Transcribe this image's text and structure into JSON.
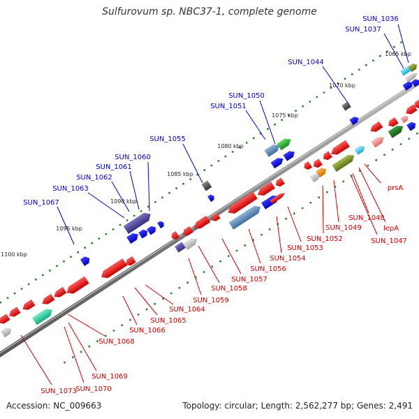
{
  "title": "Sulfurovum sp. NBC37-1, complete genome",
  "footer": {
    "accession": "Accession: NC_009663",
    "summary": "Topology: circular; Length: 2,562,277 bp; Genes: 2,491"
  },
  "colors": {
    "backbone": "#8c8c8c",
    "forward_label": "#0000cc",
    "reverse_label": "#cc0000",
    "tick": "#2a7a2a"
  },
  "ticks": [
    "1065 kbp",
    "1070 kbp",
    "1075 kbp",
    "1080 kbp",
    "1085 kbp",
    "1090 kbp",
    "1095 kbp",
    "1100 kbp"
  ],
  "labels_forward": [
    "SUN_1036",
    "SUN_1037",
    "SUN_1044",
    "SUN_1050",
    "SUN_1051",
    "SUN_1055",
    "SUN_1060",
    "SUN_1061",
    "SUN_1062",
    "SUN_1063",
    "SUN_1067"
  ],
  "labels_reverse": [
    "prsA",
    "SUN_1048",
    "lepA",
    "SUN_1047",
    "SUN_1049",
    "SUN_1052",
    "SUN_1053",
    "SUN_1054",
    "SUN_1056",
    "SUN_1057",
    "SUN_1058",
    "SUN_1059",
    "SUN_1064",
    "SUN_1065",
    "SUN_1066",
    "SUN_1068",
    "SUN_1069",
    "SUN_1070",
    "SUN_1073"
  ]
}
